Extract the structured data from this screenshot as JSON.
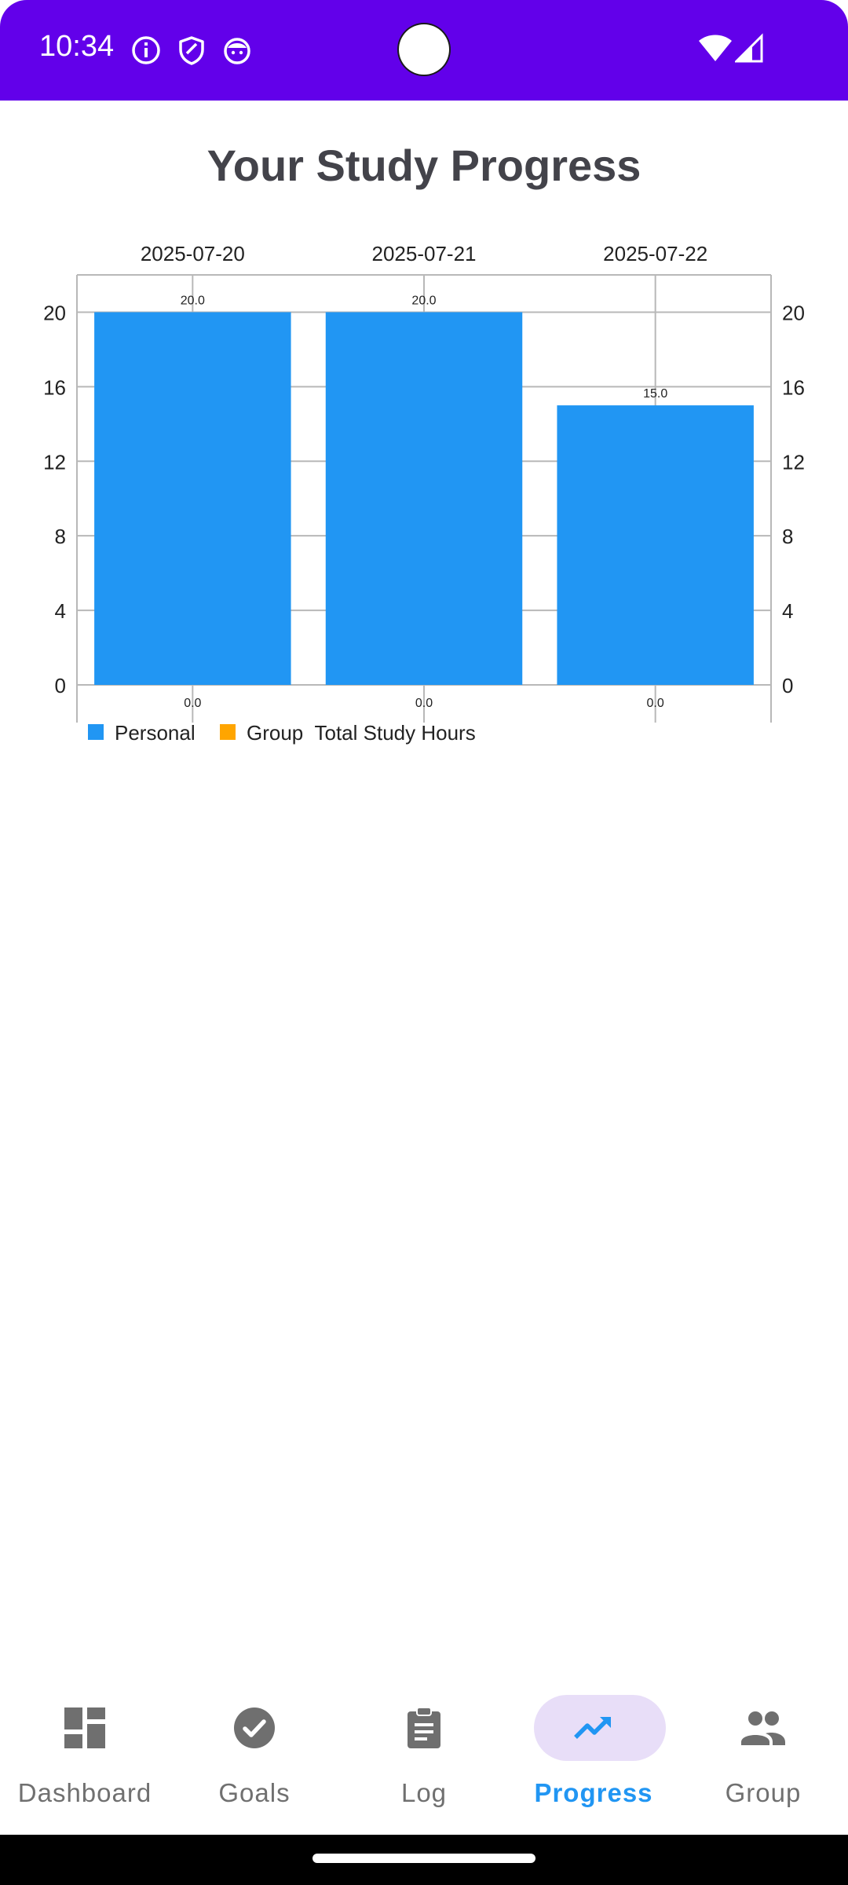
{
  "status_bar": {
    "time": "10:34",
    "icons": [
      "info-icon",
      "shield-icon",
      "face-icon",
      "wifi-icon",
      "signal-icon"
    ],
    "background": "#6200ea"
  },
  "page": {
    "title": "Your Study Progress"
  },
  "chart_data": {
    "type": "bar",
    "stacked": true,
    "categories": [
      "2025-07-20",
      "2025-07-21",
      "2025-07-22"
    ],
    "series": [
      {
        "name": "Personal",
        "values": [
          20.0,
          20.0,
          15.0
        ],
        "color": "#2196f3"
      },
      {
        "name": "Group",
        "values": [
          0.0,
          0.0,
          0.0
        ],
        "color": "#ffa500"
      }
    ],
    "value_labels_top": [
      "20.0",
      "20.0",
      "15.0"
    ],
    "value_labels_bottom": [
      "0.0",
      "0.0",
      "0.0"
    ],
    "legend_title": "Total Study Hours",
    "legend_position": "bottom-left",
    "xaxis_position": "top",
    "ylim": [
      0,
      22
    ],
    "yticks": [
      0,
      4,
      8,
      12,
      16,
      20
    ],
    "ytick_labels": [
      "0",
      "4",
      "8",
      "12",
      "16",
      "20"
    ],
    "grid": true,
    "dual_y_axis": true
  },
  "bottom_nav": {
    "items": [
      {
        "label": "Dashboard",
        "icon": "dashboard-icon",
        "active": false
      },
      {
        "label": "Goals",
        "icon": "check-circle-icon",
        "active": false
      },
      {
        "label": "Log",
        "icon": "clipboard-icon",
        "active": false
      },
      {
        "label": "Progress",
        "icon": "trending-up-icon",
        "active": true
      },
      {
        "label": "Group",
        "icon": "people-icon",
        "active": false
      }
    ],
    "active_color": "#2196f3",
    "inactive_color": "#707070",
    "active_pill_color": "#e8def8"
  }
}
